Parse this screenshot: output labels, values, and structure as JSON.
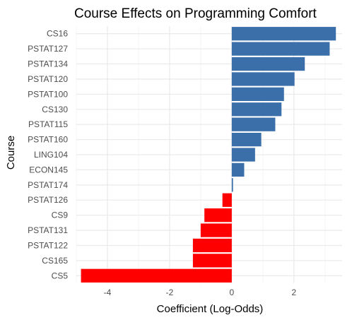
{
  "chart_data": {
    "type": "bar",
    "orientation": "horizontal",
    "title": "Course Effects on Programming Comfort",
    "xlabel": "Coefficient (Log-Odds)",
    "ylabel": "Course",
    "categories": [
      "CS16",
      "PSTAT127",
      "PSTAT134",
      "PSTAT120",
      "PSTAT100",
      "CS130",
      "PSTAT115",
      "PSTAT160",
      "LING104",
      "ECON145",
      "PSTAT174",
      "PSTAT126",
      "CS9",
      "PSTAT131",
      "PSTAT122",
      "CS165",
      "CS5"
    ],
    "values": [
      3.35,
      3.15,
      2.35,
      2.02,
      1.68,
      1.6,
      1.4,
      0.95,
      0.75,
      0.4,
      0.04,
      -0.3,
      -0.88,
      -1.0,
      -1.25,
      -1.25,
      -4.85
    ],
    "xlim": [
      -5.0,
      3.55
    ],
    "xticks": [
      -4,
      -2,
      0,
      2
    ],
    "grid": true,
    "colors": {
      "positive": "#3a6faa",
      "negative": "#ff0000",
      "grid_major": "#ebebeb",
      "grid_minor": "#f4f4f4"
    }
  }
}
